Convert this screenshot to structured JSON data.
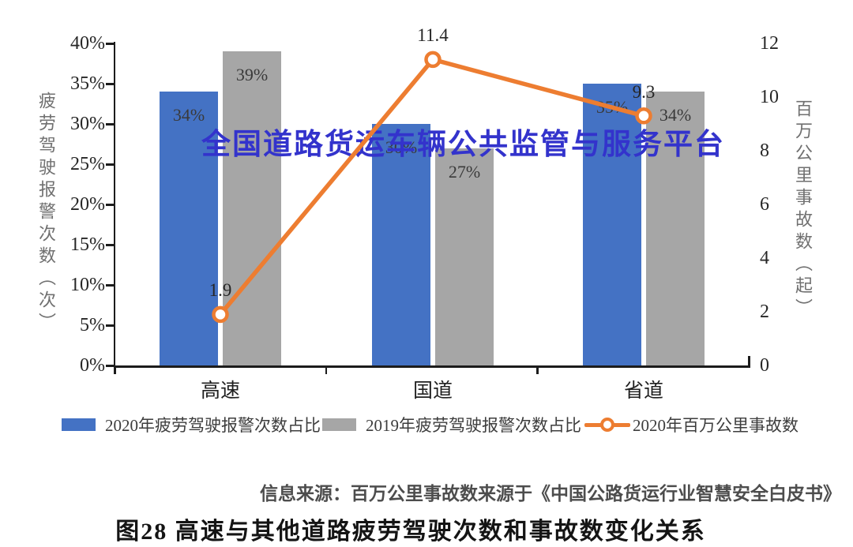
{
  "watermark": "全国道路货运车辆公共监管与服务平台",
  "watermark_color": "#3333cc",
  "chart_data": {
    "type": "bar+line combo",
    "categories": [
      "高速",
      "国道",
      "省道"
    ],
    "series": [
      {
        "name": "2020年疲劳驾驶报警次数占比",
        "type": "bar",
        "axis": "left",
        "color": "#4472C4",
        "values": [
          34,
          30,
          35
        ],
        "labels": [
          "34%",
          "30%",
          "35%"
        ]
      },
      {
        "name": "2019年疲劳驾驶报警次数占比",
        "type": "bar",
        "axis": "left",
        "color": "#A6A6A6",
        "values": [
          39,
          27,
          34
        ],
        "labels": [
          "39%",
          "27%",
          "34%"
        ]
      },
      {
        "name": "2020年百万公里事故数",
        "type": "line",
        "axis": "right",
        "color": "#ED7D31",
        "values": [
          1.9,
          11.4,
          9.3
        ],
        "labels": [
          "1.9",
          "11.4",
          "9.3"
        ]
      }
    ],
    "left_axis": {
      "title": "疲劳驾驶报警次数（次）",
      "ticks": [
        "40%",
        "35%",
        "30%",
        "25%",
        "20%",
        "15%",
        "10%",
        "5%",
        "0%"
      ],
      "min": 0,
      "max": 40
    },
    "right_axis": {
      "title": "百万公里事故数（起）",
      "ticks": [
        "12",
        "10",
        "8",
        "6",
        "4",
        "2",
        "0"
      ],
      "min": 0,
      "max": 12
    },
    "grid": "off",
    "legend_position": "bottom"
  },
  "source_note": "信息来源：百万公里事故数来源于《中国公路货运行业智慧安全白皮书》",
  "caption": "图28 高速与其他道路疲劳驾驶次数和事故数变化关系"
}
